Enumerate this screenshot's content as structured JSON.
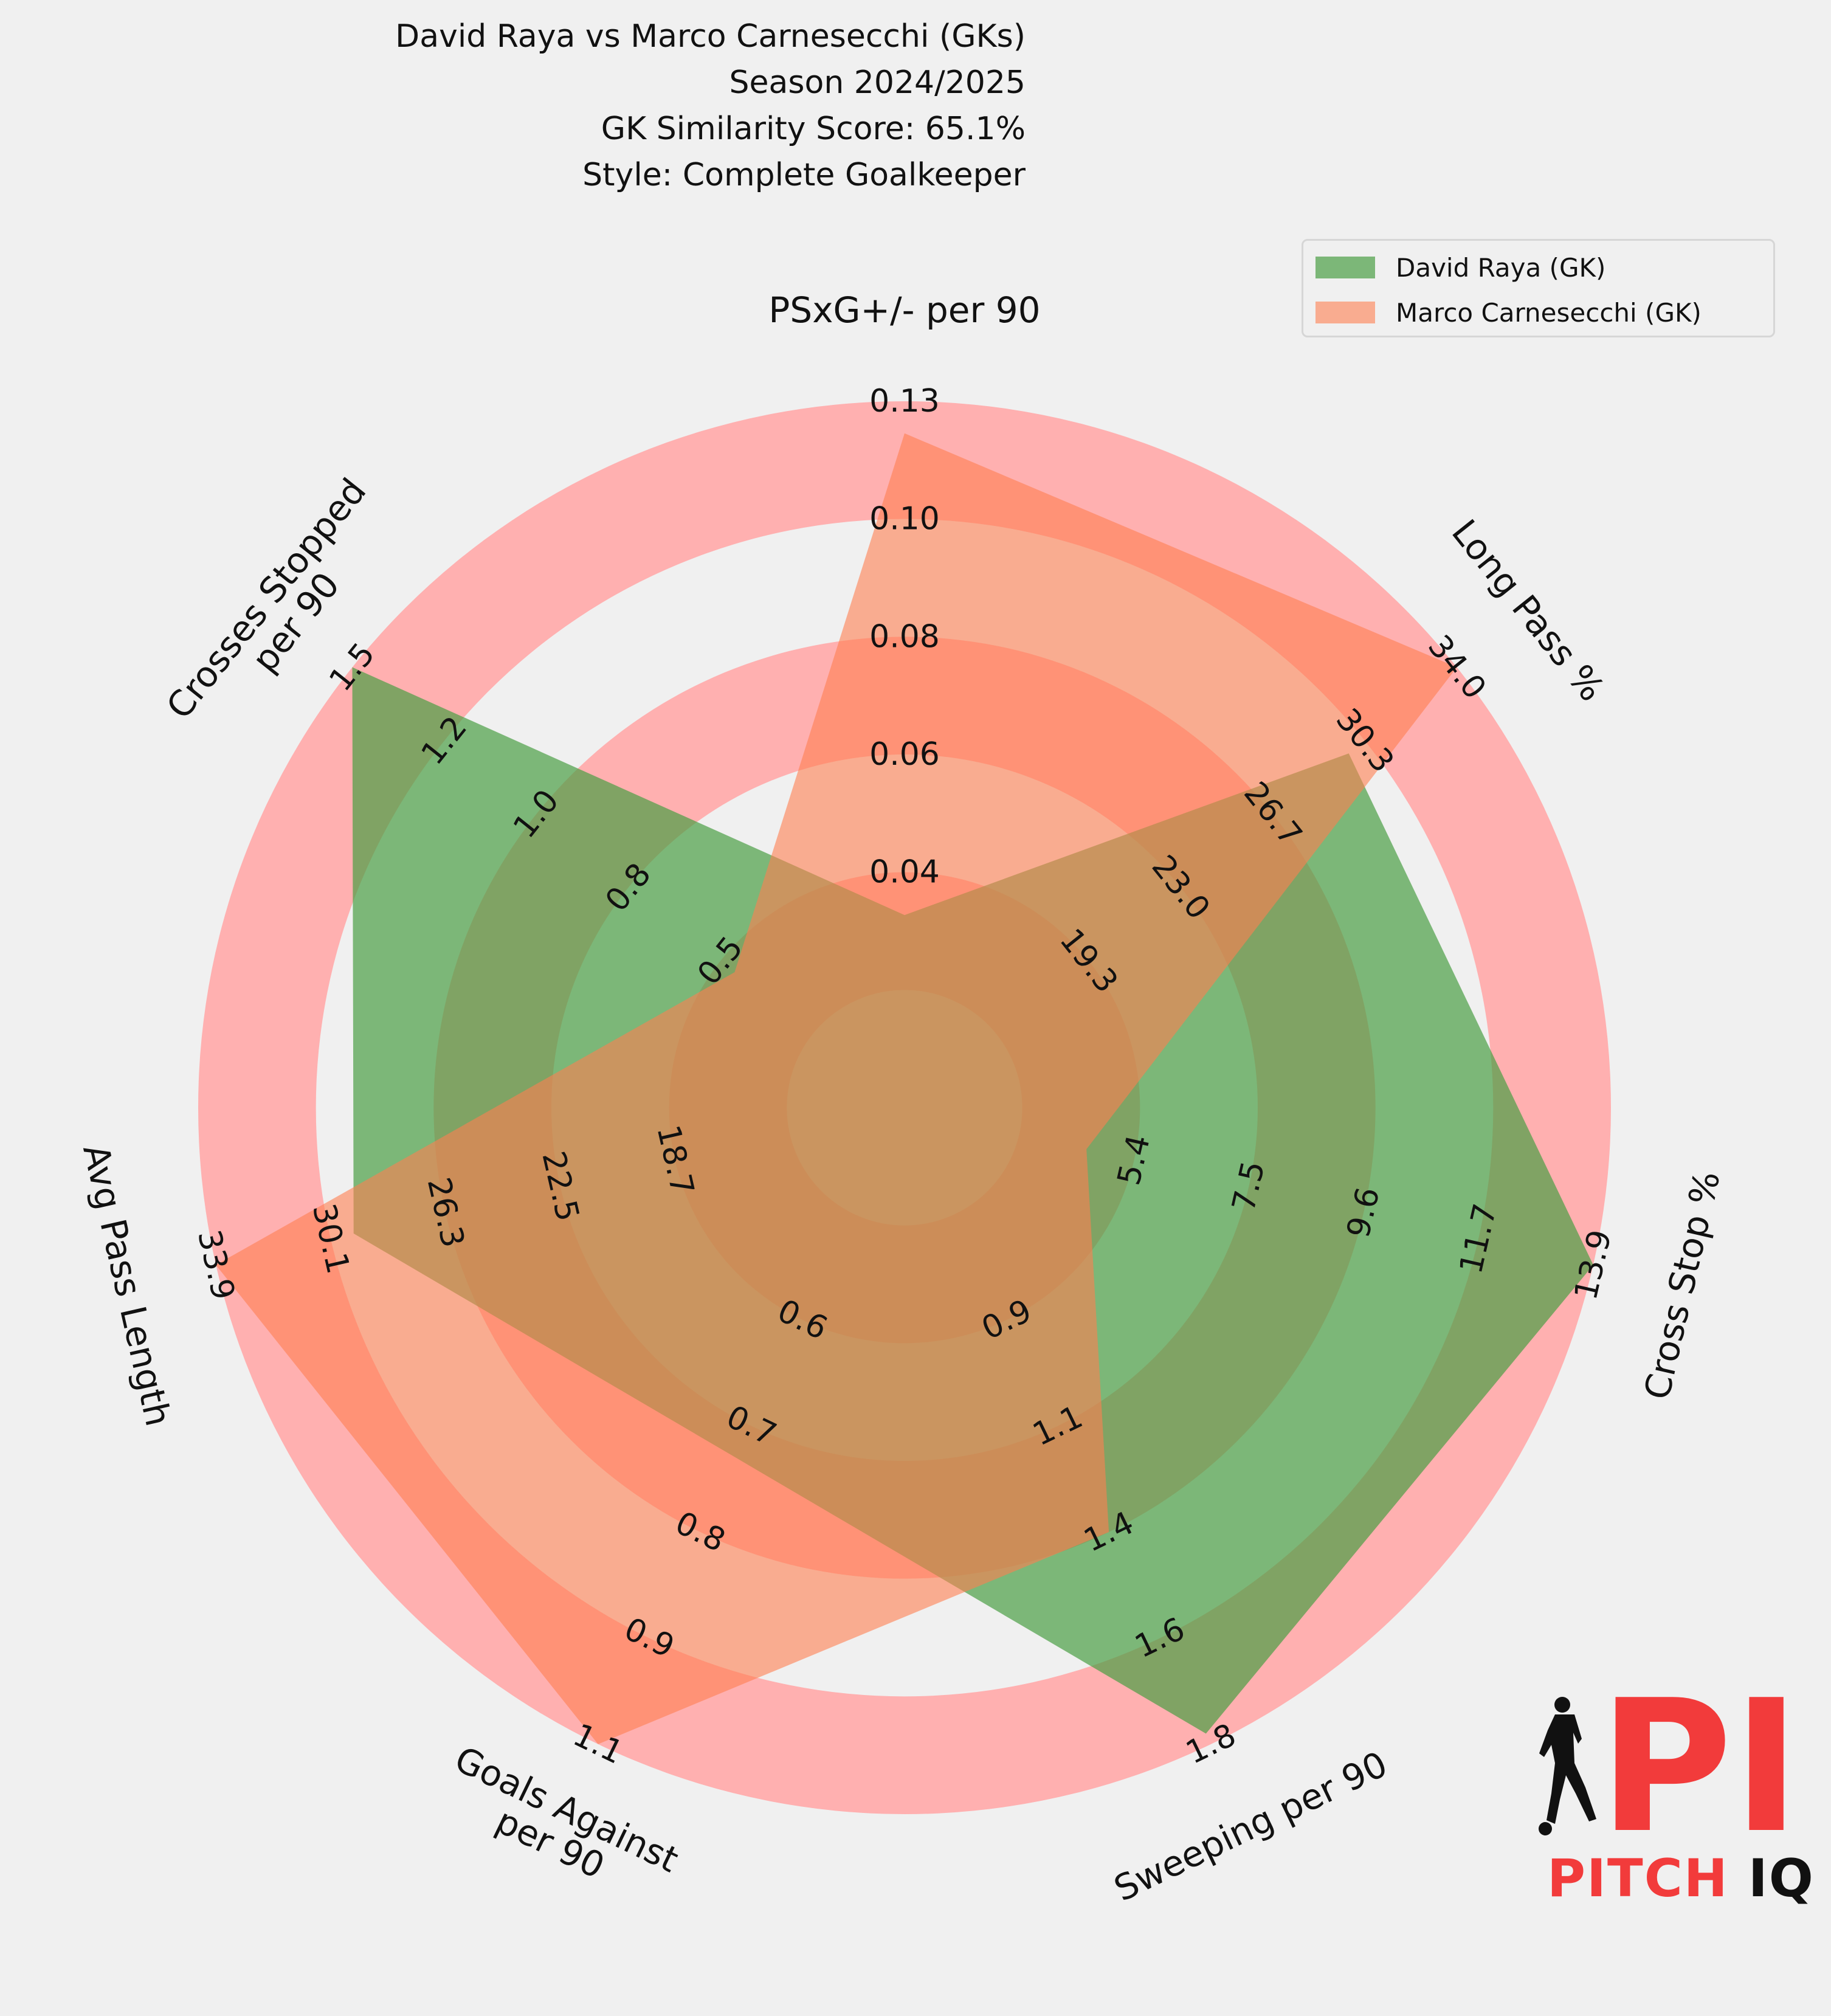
{
  "title_lines": [
    "David Raya vs Marco Carnesecchi (GKs)",
    "Season 2024/2025",
    "GK Similarity Score: 65.1%",
    "Style: Complete Goalkeeper"
  ],
  "colors": {
    "background": "#f0f0f0",
    "ring_pink": "#ffb0b0",
    "ring_light": "#f0f0f0",
    "raya": "#4a9e45",
    "carnesecchi": "#ff7f50",
    "logo_red": "#f23b3b",
    "logo_dark": "#111111"
  },
  "logo": {
    "mark": "PI",
    "text_part1": "PITCH ",
    "text_part2": "IQ"
  },
  "chart_data": {
    "type": "radar",
    "grid": false,
    "legend_position": "top-right",
    "axes": [
      {
        "label": "PSxG+/- per 90",
        "ticks": [
          "0.04",
          "0.06",
          "0.08",
          "0.10",
          "0.13"
        ],
        "range": [
          0.02,
          0.13
        ]
      },
      {
        "label": "Long Pass %",
        "ticks": [
          "19.3",
          "23.0",
          "26.7",
          "30.3",
          "34.0"
        ],
        "range": [
          15.6,
          34.0
        ]
      },
      {
        "label": "Cross Stop %",
        "ticks": [
          "5.4",
          "7.5",
          "9.6",
          "11.7",
          "13.9"
        ],
        "range": [
          3.3,
          13.9
        ]
      },
      {
        "label": "Sweeping per 90",
        "ticks": [
          "0.9",
          "1.1",
          "1.4",
          "1.6",
          "1.8"
        ],
        "range": [
          0.6,
          1.8
        ]
      },
      {
        "label": "Goals Against\nper 90",
        "ticks": [
          "0.6",
          "0.7",
          "0.8",
          "0.9",
          "1.1"
        ],
        "range": [
          0.5,
          1.1
        ]
      },
      {
        "label": "Avg Pass Length",
        "ticks": [
          "18.7",
          "22.5",
          "26.3",
          "30.1",
          "33.9"
        ],
        "range": [
          14.9,
          33.9
        ]
      },
      {
        "label": "Crosses Stopped\nper 90",
        "ticks": [
          "0.5",
          "0.8",
          "1.0",
          "1.2",
          "1.5"
        ],
        "range": [
          0.2,
          1.5
        ]
      }
    ],
    "series": [
      {
        "name": "David Raya (GK)",
        "values": [
          0.05,
          30.4,
          13.9,
          1.78,
          0.83,
          30.1,
          1.5
        ]
      },
      {
        "name": "Marco Carnesecchi (GK)",
        "values": [
          0.125,
          34.0,
          6.1,
          1.4,
          1.1,
          33.9,
          0.6
        ]
      }
    ]
  }
}
